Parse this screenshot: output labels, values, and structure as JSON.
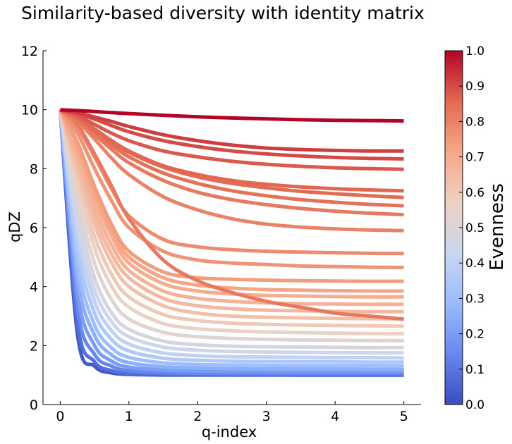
{
  "chart_data": {
    "type": "line",
    "title": "Similarity-based diversity with identity matrix",
    "xlabel": "q-index",
    "ylabel": "qDZ",
    "xlim": [
      -0.25,
      5.25
    ],
    "ylim": [
      0,
      12
    ],
    "xticks": [
      0,
      1,
      2,
      3,
      4,
      5
    ],
    "yticks": [
      0,
      2,
      4,
      6,
      8,
      10,
      12
    ],
    "grid": false,
    "colormap": "coolwarm",
    "colormap_stops": [
      "#3b4cc0",
      "#6788ee",
      "#9abbff",
      "#c9d7f0",
      "#edd1c2",
      "#f7a889",
      "#e26952",
      "#b40426"
    ],
    "colorbar": {
      "label": "Evenness",
      "range": [
        0,
        1
      ],
      "ticks": [
        "0.0",
        "0.1",
        "0.2",
        "0.3",
        "0.4",
        "0.5",
        "0.6",
        "0.7",
        "0.8",
        "0.9",
        "1.0"
      ]
    },
    "q_values": [
      0,
      0.25,
      0.5,
      0.75,
      1,
      1.5,
      2,
      2.5,
      3,
      3.5,
      4,
      4.5,
      5
    ],
    "series": [
      {
        "evenness": 1.0,
        "values": [
          10,
          9.97,
          9.94,
          9.9,
          9.87,
          9.81,
          9.76,
          9.72,
          9.69,
          9.66,
          9.64,
          9.63,
          9.62
        ]
      },
      {
        "evenness": 0.92,
        "values": [
          10,
          9.9,
          9.75,
          9.6,
          9.43,
          9.15,
          8.95,
          8.8,
          8.7,
          8.65,
          8.62,
          8.6,
          8.6
        ]
      },
      {
        "evenness": 0.9,
        "values": [
          10,
          9.87,
          9.68,
          9.46,
          9.25,
          8.95,
          8.75,
          8.6,
          8.5,
          8.43,
          8.38,
          8.35,
          8.33
        ]
      },
      {
        "evenness": 0.88,
        "values": [
          10,
          9.8,
          9.5,
          9.2,
          8.95,
          8.6,
          8.4,
          8.25,
          8.15,
          8.08,
          8.03,
          8.0,
          7.98
        ]
      },
      {
        "evenness": 0.86,
        "values": [
          10,
          9.75,
          9.35,
          8.95,
          8.6,
          8.1,
          7.8,
          7.6,
          7.47,
          7.38,
          7.32,
          7.28,
          7.25
        ]
      },
      {
        "evenness": 0.85,
        "values": [
          10,
          9.72,
          9.3,
          8.9,
          8.55,
          8.05,
          7.72,
          7.5,
          7.35,
          7.23,
          7.15,
          7.08,
          7.02
        ]
      },
      {
        "evenness": 0.84,
        "values": [
          10,
          9.7,
          9.25,
          8.8,
          8.4,
          7.85,
          7.5,
          7.25,
          7.08,
          6.95,
          6.86,
          6.79,
          6.74
        ]
      },
      {
        "evenness": 0.82,
        "values": [
          10,
          9.65,
          9.15,
          8.65,
          8.2,
          7.6,
          7.2,
          6.95,
          6.78,
          6.65,
          6.56,
          6.49,
          6.44
        ]
      },
      {
        "evenness": 0.8,
        "values": [
          10,
          9.6,
          9.0,
          8.35,
          7.8,
          7.05,
          6.6,
          6.3,
          6.12,
          6.02,
          5.96,
          5.92,
          5.9
        ]
      },
      {
        "evenness": 0.78,
        "values": [
          10,
          9.4,
          8.4,
          7.3,
          6.4,
          5.6,
          5.35,
          5.25,
          5.2,
          5.17,
          5.15,
          5.13,
          5.12
        ]
      },
      {
        "evenness": 0.82,
        "values": [
          10,
          9.5,
          8.5,
          7.4,
          6.3,
          4.9,
          4.2,
          3.8,
          3.5,
          3.3,
          3.1,
          3.0,
          2.9
        ]
      },
      {
        "evenness": 0.76,
        "values": [
          10,
          9.2,
          8.0,
          6.9,
          6.0,
          5.2,
          4.9,
          4.8,
          4.75,
          4.7,
          4.68,
          4.66,
          4.65
        ]
      },
      {
        "evenness": 0.74,
        "values": [
          10,
          8.9,
          7.4,
          6.1,
          5.2,
          4.5,
          4.3,
          4.25,
          4.22,
          4.2,
          4.19,
          4.18,
          4.18
        ]
      },
      {
        "evenness": 0.72,
        "values": [
          10,
          8.8,
          7.2,
          5.9,
          5.0,
          4.3,
          4.05,
          3.95,
          3.9,
          3.88,
          3.86,
          3.85,
          3.85
        ]
      },
      {
        "evenness": 0.7,
        "values": [
          10,
          8.6,
          7.0,
          5.7,
          4.8,
          4.1,
          3.85,
          3.75,
          3.7,
          3.68,
          3.66,
          3.65,
          3.65
        ]
      },
      {
        "evenness": 0.68,
        "values": [
          10,
          8.4,
          6.7,
          5.4,
          4.55,
          3.85,
          3.6,
          3.5,
          3.45,
          3.42,
          3.41,
          3.4,
          3.4
        ]
      },
      {
        "evenness": 0.66,
        "values": [
          10,
          8.2,
          6.4,
          5.1,
          4.3,
          3.6,
          3.35,
          3.25,
          3.2,
          3.18,
          3.16,
          3.15,
          3.15
        ]
      },
      {
        "evenness": 0.63,
        "values": [
          10,
          8.0,
          6.1,
          4.8,
          4.0,
          3.35,
          3.1,
          3.0,
          2.96,
          2.94,
          2.92,
          2.91,
          2.9
        ]
      },
      {
        "evenness": 0.6,
        "values": [
          10,
          7.7,
          5.7,
          4.4,
          3.65,
          3.05,
          2.85,
          2.76,
          2.72,
          2.7,
          2.68,
          2.67,
          2.66
        ]
      },
      {
        "evenness": 0.56,
        "values": [
          10,
          7.4,
          5.3,
          4.0,
          3.3,
          2.75,
          2.57,
          2.5,
          2.46,
          2.44,
          2.42,
          2.41,
          2.4
        ]
      },
      {
        "evenness": 0.52,
        "values": [
          10,
          7.0,
          4.8,
          3.55,
          2.9,
          2.45,
          2.3,
          2.24,
          2.21,
          2.19,
          2.18,
          2.17,
          2.17
        ]
      },
      {
        "evenness": 0.48,
        "values": [
          10,
          6.6,
          4.3,
          3.1,
          2.55,
          2.15,
          2.03,
          1.98,
          1.96,
          1.95,
          1.94,
          1.93,
          1.93
        ]
      },
      {
        "evenness": 0.44,
        "values": [
          10,
          6.2,
          3.9,
          2.8,
          2.3,
          1.95,
          1.84,
          1.8,
          1.78,
          1.77,
          1.76,
          1.76,
          1.75
        ]
      },
      {
        "evenness": 0.4,
        "values": [
          10,
          5.8,
          3.5,
          2.5,
          2.05,
          1.75,
          1.66,
          1.62,
          1.61,
          1.6,
          1.59,
          1.59,
          1.58
        ]
      },
      {
        "evenness": 0.35,
        "values": [
          10,
          5.3,
          3.1,
          2.2,
          1.82,
          1.57,
          1.5,
          1.47,
          1.46,
          1.45,
          1.45,
          1.44,
          1.44
        ]
      },
      {
        "evenness": 0.3,
        "values": [
          10,
          4.8,
          2.7,
          1.92,
          1.6,
          1.41,
          1.36,
          1.34,
          1.33,
          1.32,
          1.32,
          1.32,
          1.31
        ]
      },
      {
        "evenness": 0.25,
        "values": [
          10,
          4.3,
          2.35,
          1.68,
          1.42,
          1.28,
          1.24,
          1.22,
          1.21,
          1.21,
          1.21,
          1.2,
          1.2
        ]
      },
      {
        "evenness": 0.2,
        "values": [
          10,
          3.8,
          2.0,
          1.47,
          1.27,
          1.17,
          1.14,
          1.13,
          1.13,
          1.12,
          1.12,
          1.12,
          1.12
        ]
      },
      {
        "evenness": 0.14,
        "values": [
          10,
          3.3,
          1.7,
          1.3,
          1.15,
          1.08,
          1.06,
          1.06,
          1.05,
          1.05,
          1.05,
          1.05,
          1.05
        ]
      },
      {
        "evenness": 0.08,
        "values": [
          10,
          2.8,
          1.45,
          1.15,
          1.06,
          1.02,
          1.01,
          1.01,
          1.01,
          1.0,
          1.0,
          1.0,
          1.0
        ]
      },
      {
        "evenness": 0.03,
        "values": [
          10,
          2.4,
          1.3,
          1.07,
          1.02,
          1.0,
          1.0,
          1.0,
          1.0,
          1.0,
          1.0,
          1.0,
          1.0
        ]
      }
    ]
  }
}
